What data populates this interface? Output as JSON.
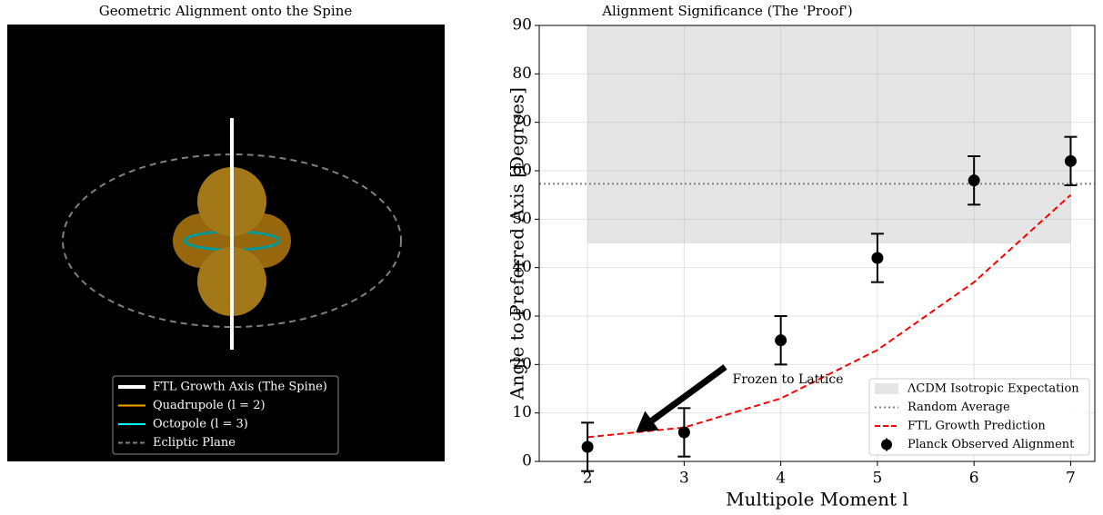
{
  "chart_data": [
    {
      "type": "diagram",
      "title": "Geometric Alignment onto the Spine",
      "legend_entries": [
        {
          "name": "FTL Growth Axis (The Spine)",
          "color": "#ffffff"
        },
        {
          "name": "Quadrupole (l = 2)",
          "color": "#ffa500"
        },
        {
          "name": "Octopole (l = 3)",
          "color": "#00ffff"
        },
        {
          "name": "Ecliptic Plane",
          "color": "#808080"
        }
      ]
    },
    {
      "type": "errorbar",
      "title": "Alignment Significance (The 'Proof')",
      "x_label": "Multipole Moment l",
      "y_label": "Angle to Preferred Axis [Degrees]",
      "x": [
        2,
        3,
        4,
        5,
        6,
        7
      ],
      "xlim": [
        1.5,
        7.25
      ],
      "ylim": [
        0,
        90
      ],
      "xticks": [
        2,
        3,
        4,
        5,
        6,
        7
      ],
      "yticks": [
        0,
        10,
        20,
        30,
        40,
        50,
        60,
        70,
        80,
        90
      ],
      "grid": true,
      "legend": "lower right",
      "bands": [
        {
          "name": "ΛCDM Isotropic Expectation",
          "range": [
            45,
            90
          ],
          "x_range": [
            2,
            7
          ],
          "color": "#d3d3d3"
        }
      ],
      "reference_lines": [
        {
          "name": "Random Average",
          "value": 57.3,
          "color": "#808080"
        }
      ],
      "series": [
        {
          "name": "FTL Growth Prediction",
          "color": "#ff0000",
          "values": [
            5,
            7,
            13,
            23,
            37,
            55
          ]
        },
        {
          "name": "Planck Observed Alignment",
          "color": "#000000",
          "values": [
            3,
            6,
            25,
            42,
            58,
            62
          ],
          "errors": [
            5,
            5,
            5,
            5,
            5,
            5
          ]
        }
      ],
      "annotations": [
        {
          "text": "Frozen to Lattice",
          "xy": [
            2.5,
            6
          ],
          "xytext": [
            3.5,
            15
          ]
        }
      ]
    }
  ]
}
